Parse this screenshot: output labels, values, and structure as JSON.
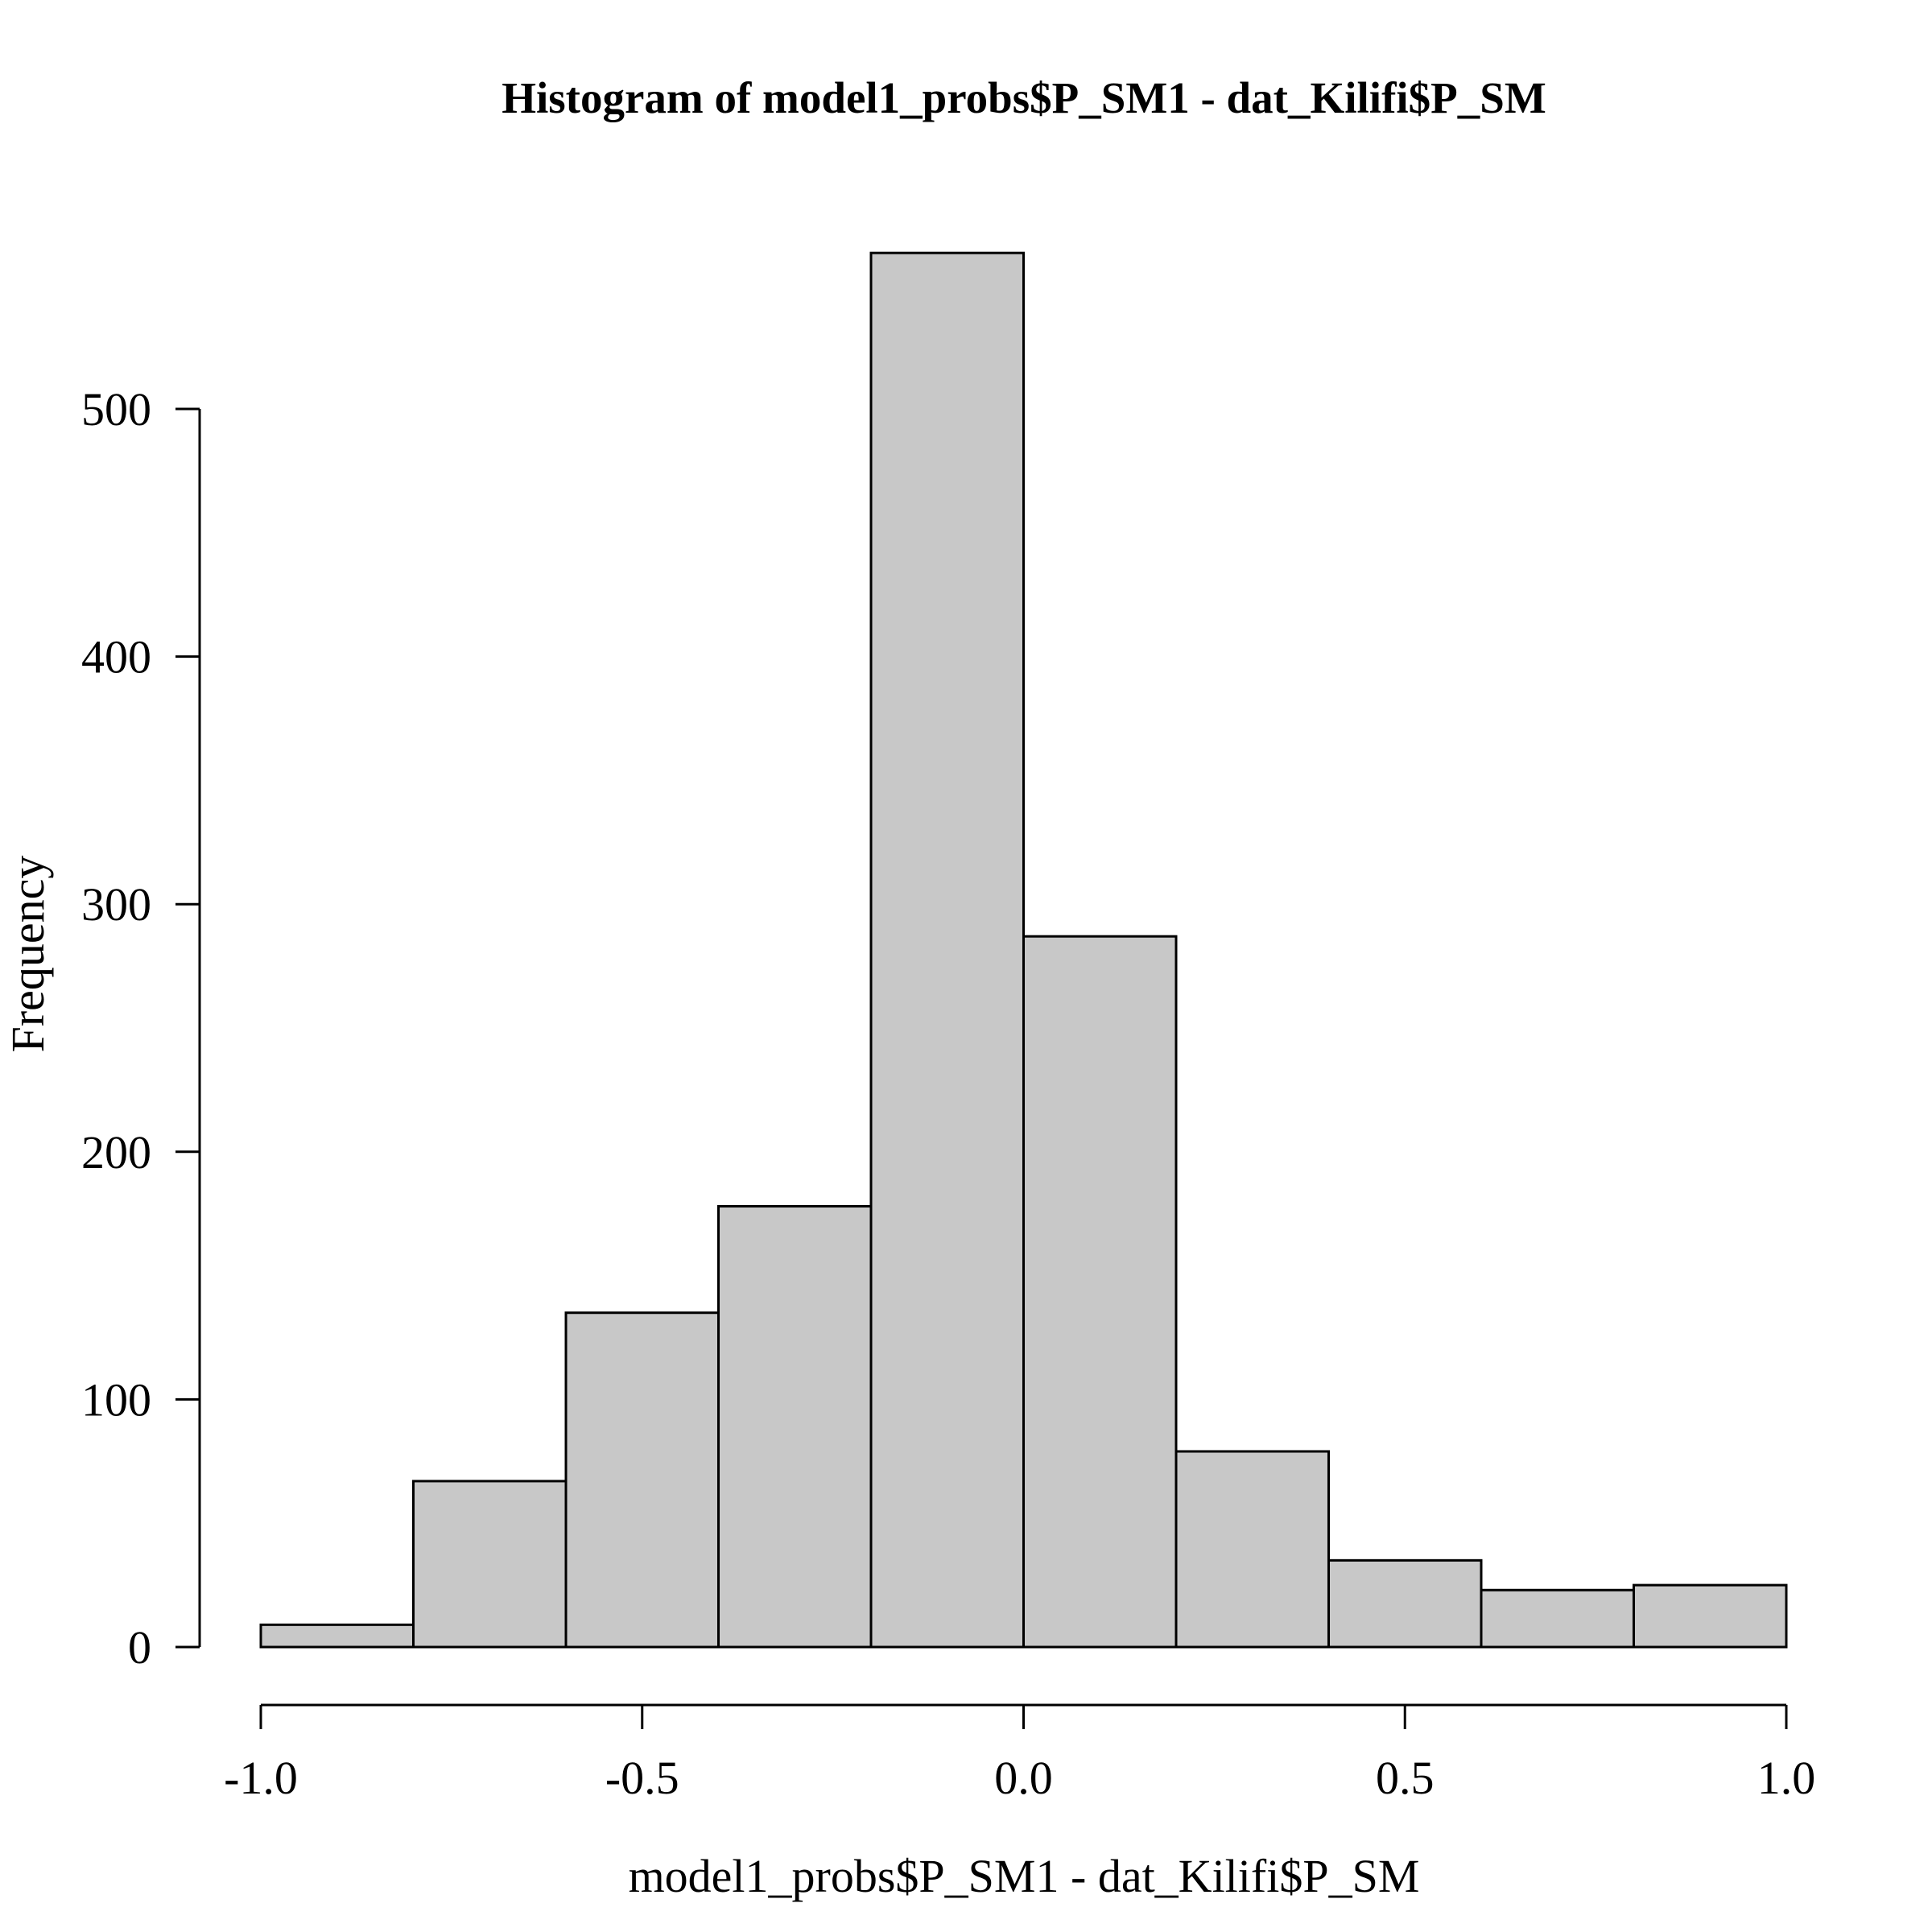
{
  "chart_data": {
    "type": "bar",
    "title": "Histogram of model1_probs$P_SM1 - dat_Kilifi$P_SM",
    "xlabel": "model1_probs$P_SM1 - dat_Kilifi$P_SM",
    "ylabel": "Frequency",
    "bins": [
      {
        "start": -1.0,
        "end": -0.8,
        "count": 9
      },
      {
        "start": -0.8,
        "end": -0.6,
        "count": 67
      },
      {
        "start": -0.6,
        "end": -0.4,
        "count": 135
      },
      {
        "start": -0.4,
        "end": -0.2,
        "count": 178
      },
      {
        "start": -0.2,
        "end": 0.0,
        "count": 563
      },
      {
        "start": 0.0,
        "end": 0.2,
        "count": 287
      },
      {
        "start": 0.2,
        "end": 0.4,
        "count": 79
      },
      {
        "start": 0.4,
        "end": 0.6,
        "count": 35
      },
      {
        "start": 0.6,
        "end": 0.8,
        "count": 23
      },
      {
        "start": 0.8,
        "end": 1.0,
        "count": 25
      }
    ],
    "x_ticks": [
      -1.0,
      -0.5,
      0.0,
      0.5,
      1.0
    ],
    "x_tick_labels": [
      "-1.0",
      "-0.5",
      "0.0",
      "0.5",
      "1.0"
    ],
    "y_ticks": [
      0,
      100,
      200,
      300,
      400,
      500
    ],
    "y_tick_labels": [
      "0",
      "100",
      "200",
      "300",
      "400",
      "500"
    ],
    "xlim": [
      -1.0,
      1.0
    ],
    "grid": false,
    "bar_color": "#c8c8c8",
    "edge_color": "#000000"
  }
}
